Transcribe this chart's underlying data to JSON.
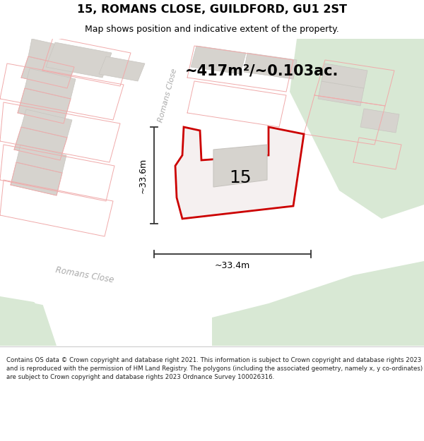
{
  "title": "15, ROMANS CLOSE, GUILDFORD, GU1 2ST",
  "subtitle": "Map shows position and indicative extent of the property.",
  "area_label": "~417m²/~0.103ac.",
  "number_label": "15",
  "dim_v": "~33.6m",
  "dim_h": "~33.4m",
  "road_label_diag": "Romans Close",
  "road_label_bottom": "Romans Close",
  "footer_text": "Contains OS data © Crown copyright and database right 2021. This information is subject to Crown copyright and database rights 2023 and is reproduced with the permission of HM Land Registry. The polygons (including the associated geometry, namely x, y co-ordinates) are subject to Crown copyright and database rights 2023 Ordnance Survey 100026316.",
  "bg_map": "#f0eeeb",
  "road_fill": "#ffffff",
  "building_fill": "#d6d3ce",
  "building_edge": "#c8c5c0",
  "green_fill": "#d8e8d4",
  "prop_fill": "#f5f0f0",
  "prop_edge": "#cc0000",
  "faint_red": "#f0aaaa",
  "dim_color": "#333333",
  "title_color": "#000000",
  "road_text_color": "#aaaaaa",
  "footer_bg": "#ffffff",
  "footer_text_color": "#222222"
}
